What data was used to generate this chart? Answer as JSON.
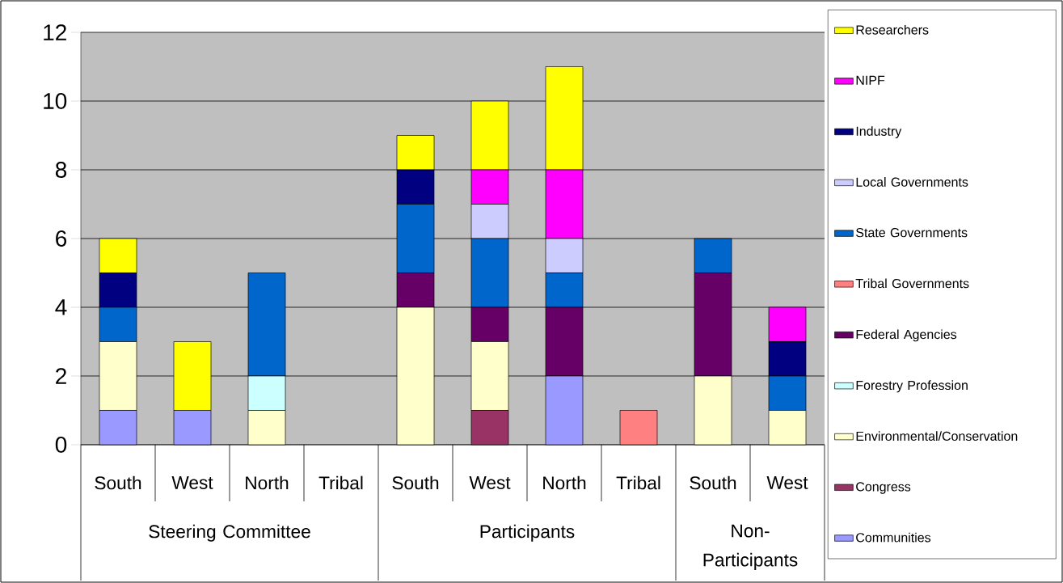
{
  "chart_data": {
    "type": "bar",
    "stacked": true,
    "grid": "y",
    "legend": "right",
    "categories": [
      "South",
      "West",
      "North",
      "Tribal",
      "South",
      "West",
      "North",
      "Tribal",
      "South",
      "West"
    ],
    "annotations": [
      "Steering Committee",
      "Participants",
      "Non-Participants"
    ],
    "ylim": [
      0,
      12
    ],
    "yticks": [
      0,
      2,
      4,
      6,
      8,
      10,
      12
    ],
    "series": [
      {
        "name": "Communities",
        "color": "#9999ff",
        "values": [
          1,
          1,
          0,
          0,
          0,
          0,
          2,
          0,
          0,
          0
        ]
      },
      {
        "name": "Congress",
        "color": "#993366",
        "values": [
          0,
          0,
          0,
          0,
          0,
          1,
          0,
          0,
          0,
          0
        ]
      },
      {
        "name": "Environmental/Conservation",
        "color": "#ffffcc",
        "values": [
          2,
          0,
          1,
          0,
          4,
          2,
          0,
          0,
          2,
          1
        ]
      },
      {
        "name": "Forestry Profession",
        "color": "#ccffff",
        "values": [
          0,
          0,
          1,
          0,
          0,
          0,
          0,
          0,
          0,
          0
        ]
      },
      {
        "name": "Federal Agencies",
        "color": "#660066",
        "values": [
          0,
          0,
          0,
          0,
          1,
          1,
          2,
          0,
          3,
          0
        ]
      },
      {
        "name": "Tribal Governments",
        "color": "#ff8080",
        "values": [
          0,
          0,
          0,
          0,
          0,
          0,
          0,
          1,
          0,
          0
        ]
      },
      {
        "name": "State Governments",
        "color": "#0066cc",
        "values": [
          1,
          0,
          3,
          0,
          2,
          2,
          1,
          0,
          1,
          1
        ]
      },
      {
        "name": "Local Governments",
        "color": "#ccccff",
        "values": [
          0,
          0,
          0,
          0,
          0,
          1,
          1,
          0,
          0,
          0
        ]
      },
      {
        "name": "Industry",
        "color": "#000080",
        "values": [
          1,
          0,
          0,
          0,
          1,
          0,
          0,
          0,
          0,
          1
        ]
      },
      {
        "name": "NIPF",
        "color": "#ff00ff",
        "values": [
          0,
          0,
          0,
          0,
          0,
          1,
          2,
          0,
          0,
          1
        ]
      },
      {
        "name": "Researchers",
        "color": "#ffff00",
        "values": [
          1,
          2,
          0,
          0,
          1,
          2,
          3,
          0,
          0,
          0
        ]
      }
    ]
  }
}
